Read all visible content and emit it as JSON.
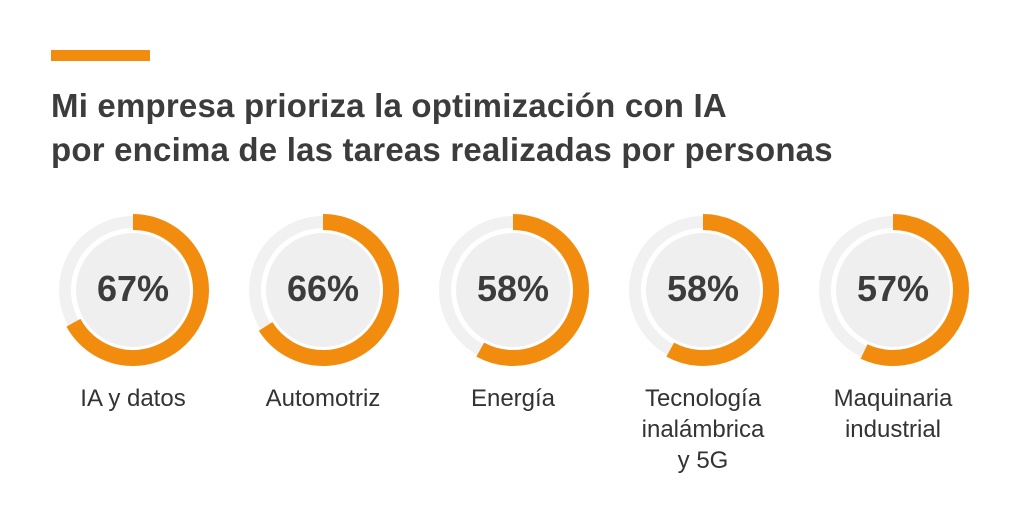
{
  "colors": {
    "accent": "#f28c0f",
    "track": "#f1f1f1",
    "inner": "#efefef",
    "text": "#3c3c3c"
  },
  "title": {
    "line1": "Mi empresa prioriza la optimización con IA",
    "line2": "por encima de las tareas realizadas por personas"
  },
  "chart_data": {
    "type": "donut",
    "title": "Mi empresa prioriza la optimización con IA por encima de las tareas realizadas por personas",
    "unit": "%",
    "categories": [
      "IA y datos",
      "Automotriz",
      "Energía",
      "Tecnología inalámbrica y 5G",
      "Maquinaria industrial"
    ],
    "values": [
      67,
      66,
      58,
      58,
      57
    ],
    "value_labels": [
      "67%",
      "66%",
      "58%",
      "58%",
      "57%"
    ],
    "label_lines": [
      [
        "IA y datos"
      ],
      [
        "Automotriz"
      ],
      [
        "Energía"
      ],
      [
        "Tecnología",
        "inalámbrica",
        "y 5G"
      ],
      [
        "Maquinaria",
        "industrial"
      ]
    ]
  }
}
